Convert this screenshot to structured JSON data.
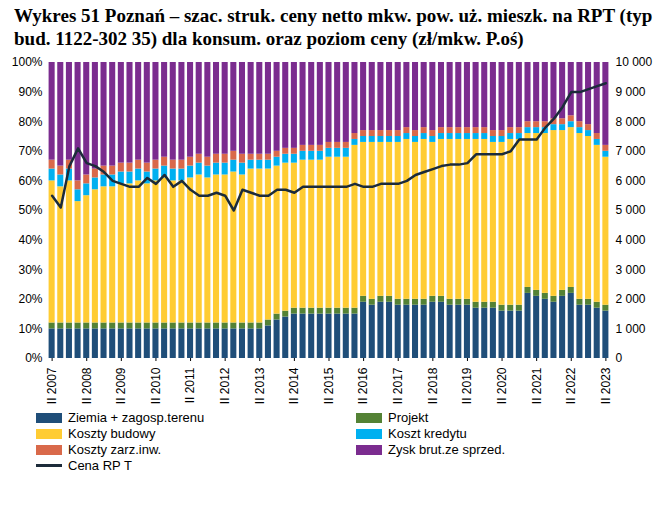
{
  "chart_data": {
    "type": "bar",
    "title": "Wykres 51 Poznań – szac. struk. ceny netto mkw. pow. uż. mieszk. na RPT (typ bud. 1122-302 35) dla konsum. oraz poziom ceny (zł/mkw. P.oś)",
    "categories": [
      "II 2007",
      null,
      null,
      null,
      "II 2008",
      null,
      null,
      null,
      "II 2009",
      null,
      null,
      null,
      "II 2010",
      null,
      null,
      null,
      "II 2011",
      null,
      null,
      null,
      "II 2012",
      null,
      null,
      null,
      "II 2013",
      null,
      null,
      null,
      "II 2014",
      null,
      null,
      null,
      "II 2015",
      null,
      null,
      null,
      "II 2016",
      null,
      null,
      null,
      "II 2017",
      null,
      null,
      null,
      "II 2018",
      null,
      null,
      null,
      "II 2019",
      null,
      null,
      null,
      "II 2020",
      null,
      null,
      null,
      "II 2021",
      null,
      null,
      null,
      "II 2022",
      null,
      null,
      null,
      "II 2023"
    ],
    "series": [
      {
        "name": "Ziemia + zagosp.terenu",
        "color": "#1F4E79",
        "values": [
          10,
          10,
          10,
          10,
          10,
          10,
          10,
          10,
          10,
          10,
          10,
          10,
          10,
          10,
          10,
          10,
          10,
          10,
          10,
          10,
          10,
          10,
          10,
          10,
          10,
          11,
          13,
          14,
          15,
          15,
          15,
          15,
          15,
          15,
          15,
          15,
          19,
          18,
          19,
          19,
          18,
          18,
          18,
          18,
          19,
          19,
          18,
          18,
          18,
          17,
          17,
          17,
          16,
          16,
          16,
          22,
          21,
          20,
          19,
          21,
          22,
          18,
          18,
          17,
          16
        ]
      },
      {
        "name": "Projekt",
        "color": "#548235",
        "values": [
          2,
          2,
          2,
          2,
          2,
          2,
          2,
          2,
          2,
          2,
          2,
          2,
          2,
          2,
          2,
          2,
          2,
          2,
          2,
          2,
          2,
          2,
          2,
          2,
          2,
          2,
          2,
          2,
          2,
          2,
          2,
          2,
          2,
          2,
          2,
          2,
          2,
          2,
          2,
          2,
          2,
          2,
          2,
          2,
          2,
          2,
          2,
          2,
          2,
          2,
          2,
          2,
          2,
          2,
          2,
          2,
          2,
          2,
          2,
          2,
          2,
          2,
          2,
          2,
          2
        ]
      },
      {
        "name": "Koszty budowy",
        "color": "#FFCC33",
        "values": [
          48,
          46,
          48,
          41,
          43,
          45,
          46,
          46,
          47,
          47,
          48,
          47,
          48,
          49,
          48,
          48,
          49,
          50,
          49,
          50,
          50,
          51,
          50,
          52,
          52,
          51,
          50,
          50,
          49,
          50,
          50,
          50,
          51,
          51,
          51,
          55,
          52,
          53,
          52,
          52,
          53,
          54,
          53,
          54,
          52,
          53,
          54,
          54,
          54,
          55,
          55,
          54,
          55,
          56,
          56,
          52,
          53,
          54,
          56,
          54,
          54,
          56,
          55,
          53,
          50
        ]
      },
      {
        "name": "Koszt kredytu",
        "color": "#00B0F0",
        "values": [
          4,
          4,
          4,
          4,
          4,
          4,
          4,
          4,
          4,
          4,
          4,
          4,
          4,
          4,
          4,
          4,
          4,
          4,
          4,
          4,
          4,
          4,
          4,
          3,
          3,
          3,
          3,
          3,
          3,
          3,
          3,
          3,
          3,
          3,
          3,
          2,
          2,
          2,
          2,
          2,
          2,
          2,
          2,
          2,
          2,
          2,
          2,
          2,
          2,
          2,
          2,
          2,
          2,
          2,
          2,
          2,
          2,
          2,
          2,
          2,
          2,
          2,
          2,
          2,
          2
        ]
      },
      {
        "name": "Koszty zarz.inw.",
        "color": "#D9694A",
        "values": [
          3,
          3,
          3,
          3,
          3,
          3,
          3,
          3,
          3,
          3,
          3,
          3,
          3,
          3,
          3,
          3,
          3,
          3,
          3,
          3,
          3,
          3,
          3,
          2,
          2,
          2,
          2,
          2,
          2,
          2,
          2,
          2,
          2,
          2,
          2,
          2,
          2,
          2,
          2,
          2,
          2,
          2,
          2,
          2,
          2,
          2,
          2,
          2,
          2,
          2,
          2,
          2,
          2,
          2,
          2,
          2,
          2,
          2,
          2,
          2,
          2,
          2,
          2,
          2,
          2
        ]
      },
      {
        "name": "Zysk brut.ze sprzed.",
        "color": "#7B2C8F",
        "values": [
          33,
          35,
          33,
          40,
          38,
          36,
          35,
          35,
          34,
          34,
          33,
          34,
          33,
          32,
          33,
          33,
          32,
          31,
          32,
          31,
          31,
          30,
          31,
          31,
          31,
          31,
          30,
          29,
          29,
          28,
          28,
          28,
          27,
          27,
          27,
          24,
          23,
          23,
          23,
          23,
          23,
          22,
          23,
          22,
          23,
          22,
          22,
          22,
          22,
          22,
          22,
          23,
          23,
          22,
          22,
          20,
          20,
          20,
          19,
          19,
          18,
          20,
          21,
          24,
          28
        ]
      },
      {
        "name": "Cena RP T",
        "type": "line",
        "axis": "y2",
        "color": "#1C2B3A",
        "values": [
          5500,
          5100,
          6500,
          7100,
          6600,
          6500,
          6300,
          6000,
          5900,
          5800,
          5800,
          6100,
          5900,
          6200,
          5800,
          6000,
          5700,
          5500,
          5500,
          5600,
          5500,
          5000,
          5700,
          5600,
          5500,
          5500,
          5700,
          5700,
          5600,
          5800,
          5800,
          5800,
          5800,
          5800,
          5800,
          5900,
          5800,
          5800,
          5900,
          5900,
          5900,
          6000,
          6200,
          6300,
          6400,
          6500,
          6550,
          6550,
          6600,
          6900,
          6900,
          6900,
          6900,
          7000,
          7400,
          7400,
          7400,
          7800,
          8100,
          8500,
          9000,
          9000,
          9100,
          9200,
          9300
        ]
      }
    ],
    "stacked": true,
    "ylim": [
      0,
      100
    ],
    "yticks": [
      {
        "value": 0,
        "label": "0%"
      },
      {
        "value": 10,
        "label": "10%"
      },
      {
        "value": 20,
        "label": "20%"
      },
      {
        "value": 30,
        "label": "30%"
      },
      {
        "value": 40,
        "label": "40%"
      },
      {
        "value": 50,
        "label": "50%"
      },
      {
        "value": 60,
        "label": "60%"
      },
      {
        "value": 70,
        "label": "70%"
      },
      {
        "value": 80,
        "label": "80%"
      },
      {
        "value": 90,
        "label": "90%"
      },
      {
        "value": 100,
        "label": "100%"
      }
    ],
    "y2lim": [
      0,
      10000
    ],
    "y2ticks": [
      0,
      {
        "value": 1000,
        "label": "1 000"
      },
      {
        "value": 2000,
        "label": "2 000"
      },
      {
        "value": 3000,
        "label": "3 000"
      },
      {
        "value": 4000,
        "label": "4 000"
      },
      {
        "value": 5000,
        "label": "5 000"
      },
      {
        "value": 6000,
        "label": "6 000"
      },
      {
        "value": 7000,
        "label": "7 000"
      },
      {
        "value": 8000,
        "label": "8 000"
      },
      {
        "value": 9000,
        "label": "9 000"
      },
      {
        "value": 10000,
        "label": "10 000"
      }
    ],
    "grid": false,
    "legend": "bottom"
  }
}
